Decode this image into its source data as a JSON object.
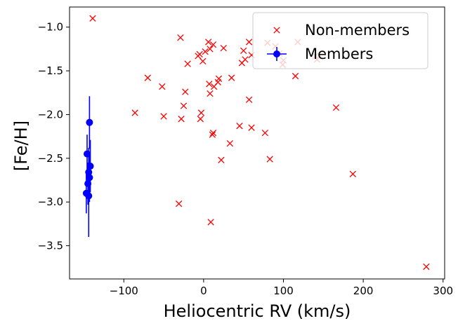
{
  "chart_data": {
    "type": "scatter",
    "xlabel": "Heliocentric RV (km/s)",
    "ylabel": "[Fe/H]",
    "xlim": [
      -168,
      302
    ],
    "ylim": [
      -3.88,
      -0.77
    ],
    "xticks": [
      -100,
      0,
      100,
      200,
      300
    ],
    "yticks": [
      -1.0,
      -1.5,
      -2.0,
      -2.5,
      -3.0,
      -3.5
    ],
    "legend_position": "top-right",
    "series": [
      {
        "name": "Non-members",
        "marker": "x",
        "color": "#ff0000",
        "points": [
          [
            -139,
            -0.9
          ],
          [
            -29,
            -1.12
          ],
          [
            6,
            -1.17
          ],
          [
            12,
            -1.2
          ],
          [
            8,
            -1.25
          ],
          [
            2,
            -1.28
          ],
          [
            -5,
            -1.31
          ],
          [
            -7,
            -1.33
          ],
          [
            25,
            -1.24
          ],
          [
            50,
            -1.27
          ],
          [
            57,
            -1.17
          ],
          [
            60,
            -1.32
          ],
          [
            52,
            -1.37
          ],
          [
            48,
            -1.41
          ],
          [
            80,
            -1.18
          ],
          [
            90,
            -1.22
          ],
          [
            95,
            -1.3
          ],
          [
            100,
            -1.38
          ],
          [
            99,
            -1.43
          ],
          [
            118,
            -1.17
          ],
          [
            140,
            -1.33
          ],
          [
            142,
            -1.37
          ],
          [
            -1,
            -1.39
          ],
          [
            -20,
            -1.42
          ],
          [
            -70,
            -1.58
          ],
          [
            -52,
            -1.68
          ],
          [
            -23,
            -1.74
          ],
          [
            7,
            -1.65
          ],
          [
            13,
            -1.68
          ],
          [
            18,
            -1.63
          ],
          [
            19,
            -1.59
          ],
          [
            35,
            -1.58
          ],
          [
            115,
            -1.56
          ],
          [
            8,
            -1.76
          ],
          [
            57,
            -1.83
          ],
          [
            -25,
            -1.9
          ],
          [
            -86,
            -1.98
          ],
          [
            -3,
            -1.98
          ],
          [
            -50,
            -2.02
          ],
          [
            -4,
            -2.05
          ],
          [
            -28,
            -2.05
          ],
          [
            166,
            -1.92
          ],
          [
            45,
            -2.13
          ],
          [
            60,
            -2.15
          ],
          [
            77,
            -2.21
          ],
          [
            12,
            -2.21
          ],
          [
            11,
            -2.23
          ],
          [
            33,
            -2.33
          ],
          [
            22,
            -2.52
          ],
          [
            83,
            -2.51
          ],
          [
            187,
            -2.68
          ],
          [
            -31,
            -3.02
          ],
          [
            9,
            -3.23
          ],
          [
            279,
            -3.74
          ]
        ]
      },
      {
        "name": "Members",
        "marker": "o",
        "color": "#0000ff",
        "points": [
          {
            "x": -143,
            "y": -2.09,
            "yerr": 0.3
          },
          {
            "x": -146,
            "y": -2.45,
            "yerr": 0.22
          },
          {
            "x": -142,
            "y": -2.59,
            "yerr": 0.3
          },
          {
            "x": -144,
            "y": -2.66,
            "yerr": 0.28
          },
          {
            "x": -143,
            "y": -2.72,
            "yerr": 0.28
          },
          {
            "x": -145,
            "y": -2.79,
            "yerr": 0.24
          },
          {
            "x": -147,
            "y": -2.9,
            "yerr": 0.23
          },
          {
            "x": -144,
            "y": -2.93,
            "yerr": 0.47
          }
        ]
      }
    ]
  }
}
